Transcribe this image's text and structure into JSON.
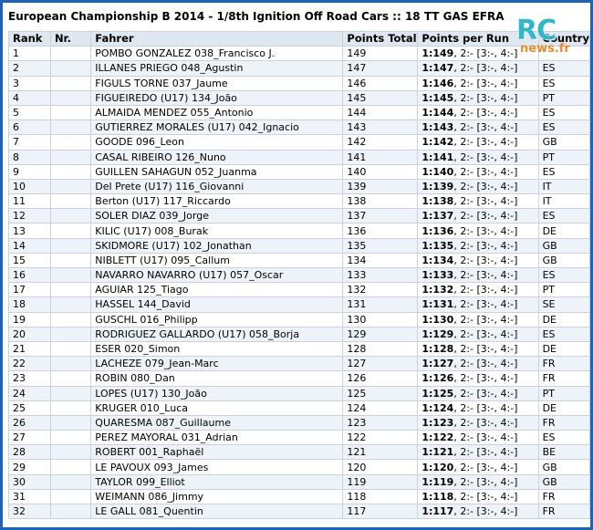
{
  "title": "European Championship B 2014 - 1/8th Ignition Off Road Cars :: 18 TT GAS EFRA",
  "logo": {
    "main": "RC",
    "sub": "news.fr"
  },
  "columns": [
    "Rank",
    "Nr.",
    "Fahrer",
    "Points Total",
    "Points per Run",
    "Country"
  ],
  "rows": [
    {
      "rank": "1",
      "nr": "",
      "driver": "POMBO GONZALEZ 038_Francisco J.",
      "points": "149",
      "run1": "1:149",
      "rest": ", 2:- [3:-, 4:-]",
      "country": ""
    },
    {
      "rank": "2",
      "nr": "",
      "driver": "ILLANES PRIEGO 048_Agustin",
      "points": "147",
      "run1": "1:147",
      "rest": ", 2:- [3:-, 4:-]",
      "country": "ES"
    },
    {
      "rank": "3",
      "nr": "",
      "driver": "FIGULS TORNE 037_Jaume",
      "points": "146",
      "run1": "1:146",
      "rest": ", 2:- [3:-, 4:-]",
      "country": "ES"
    },
    {
      "rank": "4",
      "nr": "",
      "driver": "FIGUEIREDO (U17) 134_João",
      "points": "145",
      "run1": "1:145",
      "rest": ", 2:- [3:-, 4:-]",
      "country": "PT"
    },
    {
      "rank": "5",
      "nr": "",
      "driver": "ALMAIDA MENDEZ 055_Antonio",
      "points": "144",
      "run1": "1:144",
      "rest": ", 2:- [3:-, 4:-]",
      "country": "ES"
    },
    {
      "rank": "6",
      "nr": "",
      "driver": "GUTIERREZ MORALES (U17) 042_Ignacio",
      "points": "143",
      "run1": "1:143",
      "rest": ", 2:- [3:-, 4:-]",
      "country": "ES"
    },
    {
      "rank": "7",
      "nr": "",
      "driver": "GOODE 096_Leon",
      "points": "142",
      "run1": "1:142",
      "rest": ", 2:- [3:-, 4:-]",
      "country": "GB"
    },
    {
      "rank": "8",
      "nr": "",
      "driver": "CASAL RIBEIRO 126_Nuno",
      "points": "141",
      "run1": "1:141",
      "rest": ", 2:- [3:-, 4:-]",
      "country": "PT"
    },
    {
      "rank": "9",
      "nr": "",
      "driver": "GUILLEN SAHAGUN 052_Juanma",
      "points": "140",
      "run1": "1:140",
      "rest": ", 2:- [3:-, 4:-]",
      "country": "ES"
    },
    {
      "rank": "10",
      "nr": "",
      "driver": "Del Prete (U17) 116_Giovanni",
      "points": "139",
      "run1": "1:139",
      "rest": ", 2:- [3:-, 4:-]",
      "country": "IT"
    },
    {
      "rank": "11",
      "nr": "",
      "driver": "Berton (U17) 117_Riccardo",
      "points": "138",
      "run1": "1:138",
      "rest": ", 2:- [3:-, 4:-]",
      "country": "IT"
    },
    {
      "rank": "12",
      "nr": "",
      "driver": "SOLER DIAZ 039_Jorge",
      "points": "137",
      "run1": "1:137",
      "rest": ", 2:- [3:-, 4:-]",
      "country": "ES"
    },
    {
      "rank": "13",
      "nr": "",
      "driver": "KILIC (U17) 008_Burak",
      "points": "136",
      "run1": "1:136",
      "rest": ", 2:- [3:-, 4:-]",
      "country": "DE"
    },
    {
      "rank": "14",
      "nr": "",
      "driver": "SKIDMORE (U17) 102_Jonathan",
      "points": "135",
      "run1": "1:135",
      "rest": ", 2:- [3:-, 4:-]",
      "country": "GB"
    },
    {
      "rank": "15",
      "nr": "",
      "driver": "NIBLETT (U17) 095_Callum",
      "points": "134",
      "run1": "1:134",
      "rest": ", 2:- [3:-, 4:-]",
      "country": "GB"
    },
    {
      "rank": "16",
      "nr": "",
      "driver": "NAVARRO NAVARRO (U17) 057_Oscar",
      "points": "133",
      "run1": "1:133",
      "rest": ", 2:- [3:-, 4:-]",
      "country": "ES"
    },
    {
      "rank": "17",
      "nr": "",
      "driver": "AGUIAR 125_Tiago",
      "points": "132",
      "run1": "1:132",
      "rest": ", 2:- [3:-, 4:-]",
      "country": "PT"
    },
    {
      "rank": "18",
      "nr": "",
      "driver": "HASSEL 144_David",
      "points": "131",
      "run1": "1:131",
      "rest": ", 2:- [3:-, 4:-]",
      "country": "SE"
    },
    {
      "rank": "19",
      "nr": "",
      "driver": "GUSCHL 016_Philipp",
      "points": "130",
      "run1": "1:130",
      "rest": ", 2:- [3:-, 4:-]",
      "country": "DE"
    },
    {
      "rank": "20",
      "nr": "",
      "driver": "RODRIGUEZ GALLARDO (U17) 058_Borja",
      "points": "129",
      "run1": "1:129",
      "rest": ", 2:- [3:-, 4:-]",
      "country": "ES"
    },
    {
      "rank": "21",
      "nr": "",
      "driver": "ESER 020_Simon",
      "points": "128",
      "run1": "1:128",
      "rest": ", 2:- [3:-, 4:-]",
      "country": "DE"
    },
    {
      "rank": "22",
      "nr": "",
      "driver": "LACHEZE 079_Jean-Marc",
      "points": "127",
      "run1": "1:127",
      "rest": ", 2:- [3:-, 4:-]",
      "country": "FR"
    },
    {
      "rank": "23",
      "nr": "",
      "driver": "ROBIN 080_Dan",
      "points": "126",
      "run1": "1:126",
      "rest": ", 2:- [3:-, 4:-]",
      "country": "FR"
    },
    {
      "rank": "24",
      "nr": "",
      "driver": "LOPES (U17) 130_João",
      "points": "125",
      "run1": "1:125",
      "rest": ", 2:- [3:-, 4:-]",
      "country": "PT"
    },
    {
      "rank": "25",
      "nr": "",
      "driver": "KRUGER 010_Luca",
      "points": "124",
      "run1": "1:124",
      "rest": ", 2:- [3:-, 4:-]",
      "country": "DE"
    },
    {
      "rank": "26",
      "nr": "",
      "driver": "QUARESMA 087_Guillaume",
      "points": "123",
      "run1": "1:123",
      "rest": ", 2:- [3:-, 4:-]",
      "country": "FR"
    },
    {
      "rank": "27",
      "nr": "",
      "driver": "PEREZ MAYORAL 031_Adrian",
      "points": "122",
      "run1": "1:122",
      "rest": ", 2:- [3:-, 4:-]",
      "country": "ES"
    },
    {
      "rank": "28",
      "nr": "",
      "driver": "ROBERT 001_Raphaël",
      "points": "121",
      "run1": "1:121",
      "rest": ", 2:- [3:-, 4:-]",
      "country": "BE"
    },
    {
      "rank": "29",
      "nr": "",
      "driver": "LE PAVOUX 093_James",
      "points": "120",
      "run1": "1:120",
      "rest": ", 2:- [3:-, 4:-]",
      "country": "GB"
    },
    {
      "rank": "30",
      "nr": "",
      "driver": "TAYLOR 099_Elliot",
      "points": "119",
      "run1": "1:119",
      "rest": ", 2:- [3:-, 4:-]",
      "country": "GB"
    },
    {
      "rank": "31",
      "nr": "",
      "driver": "WEIMANN 086_Jimmy",
      "points": "118",
      "run1": "1:118",
      "rest": ", 2:- [3:-, 4:-]",
      "country": "FR"
    },
    {
      "rank": "32",
      "nr": "",
      "driver": "LE GALL 081_Quentin",
      "points": "117",
      "run1": "1:117",
      "rest": ", 2:- [3:-, 4:-]",
      "country": "FR"
    }
  ]
}
